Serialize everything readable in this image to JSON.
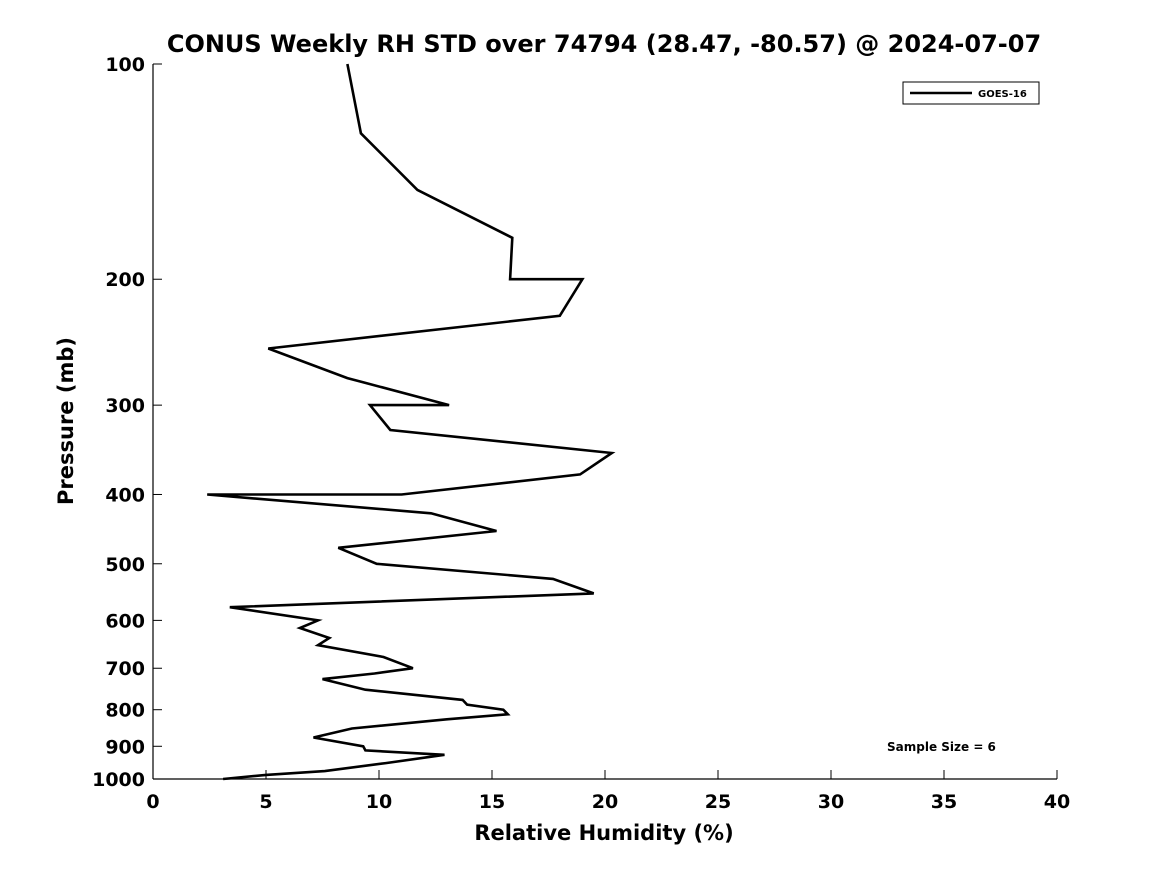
{
  "chart_data": {
    "type": "line",
    "title": "CONUS Weekly RH STD over 74794 (28.47, -80.57) @ 2024-07-07",
    "xlabel": "Relative Humidity (%)",
    "ylabel": "Pressure (mb)",
    "xlim": [
      0,
      40
    ],
    "ylim": [
      100,
      1000
    ],
    "y_scale": "log",
    "y_reversed": true,
    "grid": false,
    "legend_position": "top-right",
    "x_ticks": [
      "0",
      "5",
      "10",
      "15",
      "20",
      "25",
      "30",
      "35",
      "40"
    ],
    "y_ticks": [
      "100",
      "200",
      "300",
      "400",
      "500",
      "600",
      "700",
      "800",
      "900",
      "1000"
    ],
    "series": [
      {
        "name": "GOES-16",
        "color": "#000000",
        "x": [
          8.6,
          9.2,
          11.7,
          15.9,
          15.8,
          19.0,
          18.0,
          5.1,
          8.6,
          13.1,
          9.6,
          10.5,
          20.3,
          18.9,
          11.0,
          2.4,
          12.3,
          15.2,
          8.2,
          9.9,
          17.7,
          19.5,
          3.4,
          7.3,
          6.5,
          7.8,
          7.3,
          10.2,
          11.5,
          9.8,
          7.5,
          9.4,
          13.7,
          13.9,
          15.5,
          15.7,
          13.0,
          8.8,
          7.1,
          9.3,
          9.4,
          12.9,
          10.3,
          7.6,
          5.0,
          3.1
        ],
        "y": [
          100,
          125,
          150,
          175,
          200,
          200,
          225,
          250,
          275,
          300,
          300,
          325,
          350,
          375,
          400,
          400,
          425,
          450,
          475,
          500,
          525,
          550,
          575,
          600,
          615,
          635,
          650,
          675,
          700,
          712,
          725,
          750,
          775,
          787,
          800,
          812,
          825,
          850,
          875,
          900,
          912,
          925,
          950,
          975,
          987,
          1000
        ]
      }
    ],
    "annotations": [
      "Sample Size = 6"
    ]
  }
}
